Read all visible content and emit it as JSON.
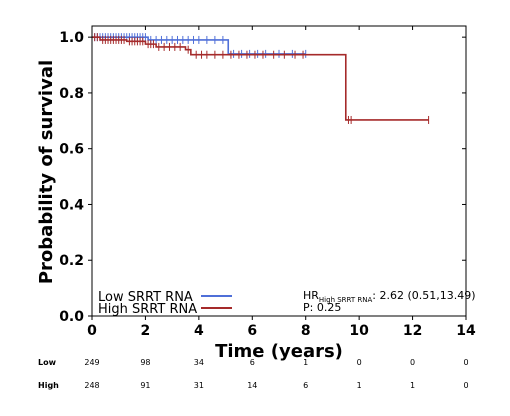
{
  "chart_data": {
    "type": "line",
    "subtype": "kaplan-meier",
    "title": "",
    "xlabel": "Time (years)",
    "ylabel": "Probability of survival",
    "xlim": [
      0,
      14
    ],
    "ylim": [
      0,
      1.04
    ],
    "xticks": [
      0,
      2,
      4,
      6,
      8,
      10,
      12,
      14
    ],
    "yticks": [
      0.0,
      0.2,
      0.4,
      0.6,
      0.8,
      1.0
    ],
    "xtick_labels": [
      "0",
      "2",
      "4",
      "6",
      "8",
      "10",
      "12",
      "14"
    ],
    "ytick_labels": [
      "0.0",
      "0.2",
      "0.4",
      "0.6",
      "0.8",
      "1.0"
    ],
    "grid": false,
    "legend_position": "bottom-left",
    "series": [
      {
        "name": "Low SRRT RNA",
        "color": "#4f6fd8",
        "steps": [
          [
            0,
            1.0
          ],
          [
            2.0,
            1.0
          ],
          [
            2.1,
            0.99
          ],
          [
            5.1,
            0.99
          ],
          [
            5.1,
            0.94
          ],
          [
            8.0,
            0.94
          ]
        ],
        "censor_times": [
          0.1,
          0.2,
          0.3,
          0.4,
          0.5,
          0.6,
          0.7,
          0.8,
          0.9,
          1.0,
          1.1,
          1.2,
          1.3,
          1.4,
          1.5,
          1.6,
          1.7,
          1.8,
          1.9,
          2.0,
          2.2,
          2.4,
          2.6,
          2.8,
          3.0,
          3.2,
          3.4,
          3.6,
          3.8,
          4.0,
          4.3,
          4.6,
          4.9,
          5.3,
          5.6,
          5.9,
          6.2,
          6.5,
          7.0,
          7.5,
          8.0
        ]
      },
      {
        "name": "High SRRT RNA",
        "color": "#a52a2a",
        "steps": [
          [
            0,
            1.0
          ],
          [
            0.3,
            1.0
          ],
          [
            0.3,
            0.99
          ],
          [
            1.3,
            0.99
          ],
          [
            1.3,
            0.985
          ],
          [
            2.0,
            0.985
          ],
          [
            2.0,
            0.975
          ],
          [
            2.4,
            0.975
          ],
          [
            2.4,
            0.965
          ],
          [
            3.5,
            0.965
          ],
          [
            3.5,
            0.955
          ],
          [
            3.7,
            0.955
          ],
          [
            3.7,
            0.937
          ],
          [
            9.5,
            0.937
          ],
          [
            9.5,
            0.703
          ],
          [
            12.6,
            0.703
          ]
        ],
        "censor_times": [
          0.1,
          0.2,
          0.4,
          0.5,
          0.6,
          0.7,
          0.8,
          0.9,
          1.0,
          1.1,
          1.2,
          1.4,
          1.5,
          1.6,
          1.7,
          1.8,
          1.9,
          2.1,
          2.2,
          2.3,
          2.5,
          2.7,
          2.9,
          3.1,
          3.3,
          3.6,
          3.9,
          4.1,
          4.3,
          4.6,
          4.9,
          5.2,
          5.5,
          5.8,
          6.1,
          6.4,
          6.8,
          7.2,
          7.6,
          7.9,
          9.6,
          9.7,
          12.6
        ]
      }
    ],
    "annotations": {
      "hr_prefix": "HR",
      "hr_subscript": "High SRRT RNA",
      "hr_value": ": 2.62 (0.51,13.49)",
      "p_value": "P: 0.25"
    },
    "risk_table": {
      "times": [
        0,
        2,
        4,
        6,
        8,
        10,
        12,
        14
      ],
      "rows": [
        {
          "label": "Low",
          "values": [
            "249",
            "98",
            "34",
            "6",
            "1",
            "0",
            "0",
            "0"
          ]
        },
        {
          "label": "High",
          "values": [
            "248",
            "91",
            "31",
            "14",
            "6",
            "1",
            "1",
            "0"
          ]
        }
      ]
    }
  }
}
